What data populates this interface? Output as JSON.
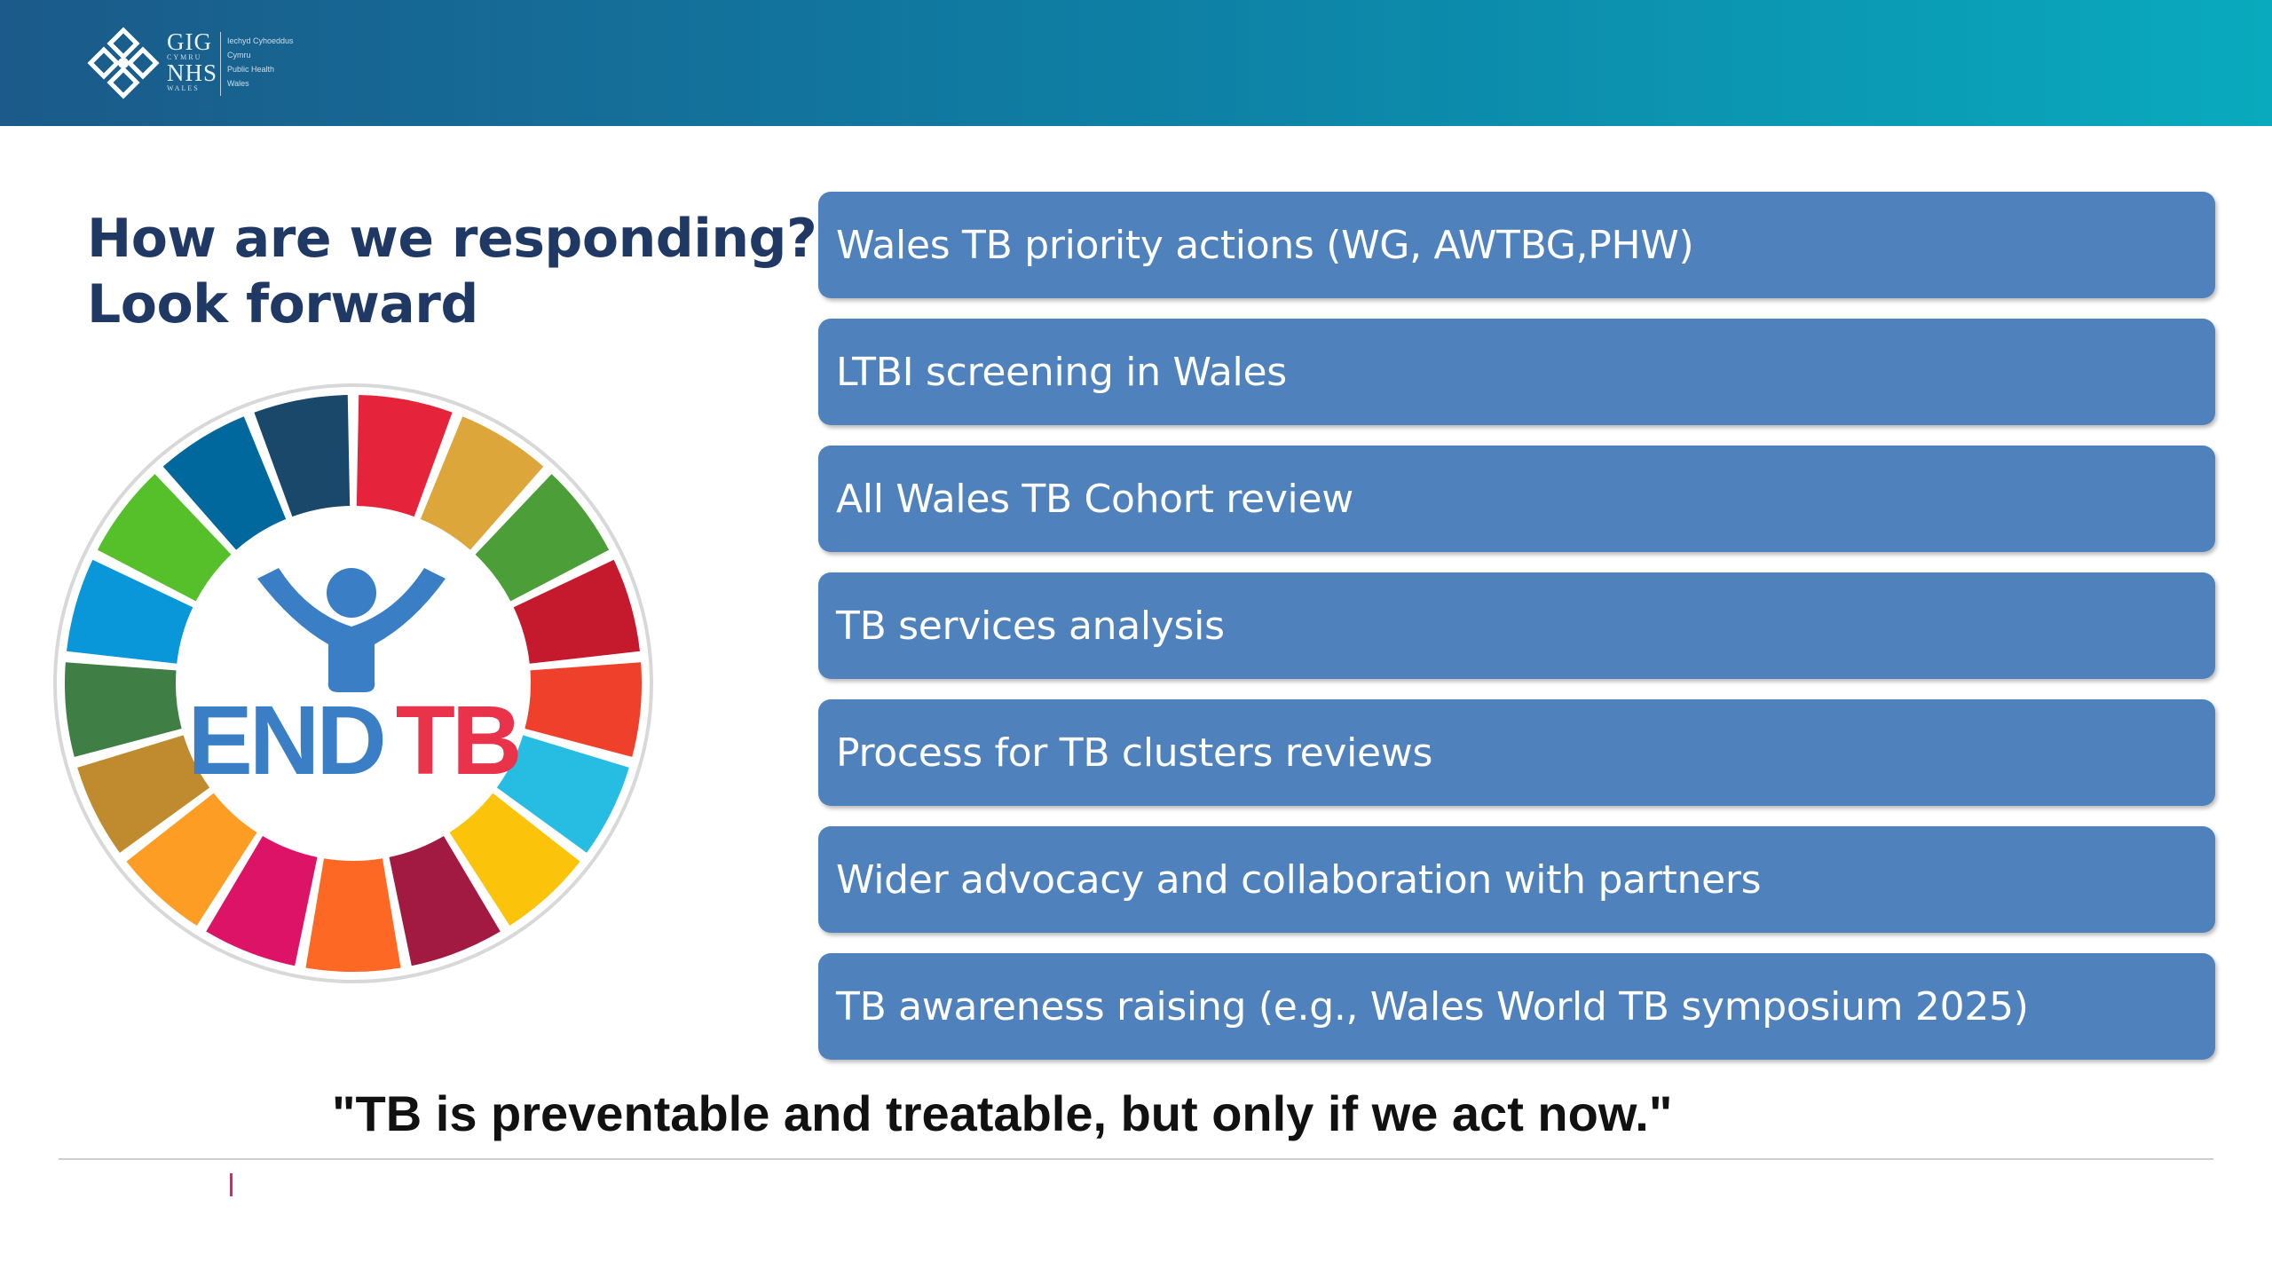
{
  "header": {
    "logo": {
      "line1": "GIG",
      "line1_sub": "CYMRU",
      "line2": "NHS",
      "line2_sub": "WALES",
      "org_lines": [
        "Iechyd Cyhoeddus",
        "Cymru",
        "Public Health",
        "Wales"
      ]
    }
  },
  "slide": {
    "title_line1": "How are we responding?",
    "title_line2": "Look forward",
    "emblem": {
      "text_end": "END",
      "text_tb": "TB",
      "segment_colors": [
        "#e5243b",
        "#dda63a",
        "#4c9f38",
        "#c5192d",
        "#ef402b",
        "#27bde2",
        "#fcc30b",
        "#a21942",
        "#fd6925",
        "#dd1367",
        "#fd9d24",
        "#bf8b2e",
        "#3f7e44",
        "#0a97d9",
        "#56c02b",
        "#00689d",
        "#19486a"
      ]
    },
    "actions": [
      "Wales TB priority actions (WG, AWTBG,PHW)",
      "LTBI screening in Wales",
      "All Wales TB Cohort review",
      "TB services analysis",
      "Process for TB clusters reviews",
      "Wider advocacy and collaboration with partners",
      "TB awareness raising (e.g., Wales World TB symposium 2025)"
    ],
    "quote": "\"TB is preventable and treatable, but only if we act now.\""
  },
  "colors": {
    "title": "#203864",
    "action_box": "#4f81bd",
    "end_blue": "#3a7ec6",
    "tb_red": "#e8334a",
    "header_start": "#1b5a8a",
    "header_end": "#09aabd"
  }
}
